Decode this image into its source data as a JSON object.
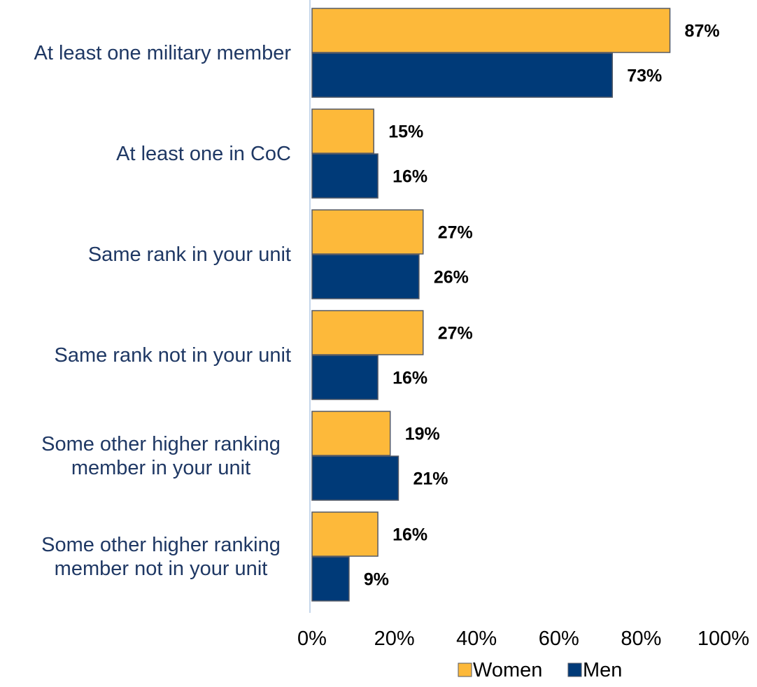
{
  "chart_data": {
    "type": "bar",
    "orientation": "horizontal",
    "categories": [
      [
        "At least one military member"
      ],
      [
        "At least one in CoC"
      ],
      [
        "Same rank in your unit"
      ],
      [
        "Same rank not in your unit"
      ],
      [
        "Some other higher ranking",
        "member in your unit"
      ],
      [
        "Some other higher ranking",
        "member not in your unit"
      ]
    ],
    "series": [
      {
        "name": "Women",
        "color": "#fdb93a",
        "values": [
          87,
          15,
          27,
          27,
          19,
          16
        ],
        "labels": [
          "87%",
          "15%",
          "27%",
          "27%",
          "19%",
          "16%"
        ]
      },
      {
        "name": "Men",
        "color": "#003a78",
        "values": [
          73,
          16,
          26,
          16,
          21,
          9
        ],
        "labels": [
          "73%",
          "16%",
          "26%",
          "16%",
          "21%",
          "9%"
        ]
      }
    ],
    "xlim": [
      0,
      100
    ],
    "x_ticks": [
      0,
      20,
      40,
      60,
      80,
      100
    ],
    "x_tick_labels": [
      "0%",
      "20%",
      "40%",
      "60%",
      "80%",
      "100%"
    ],
    "grid": false,
    "legend_position": "bottom-right"
  }
}
